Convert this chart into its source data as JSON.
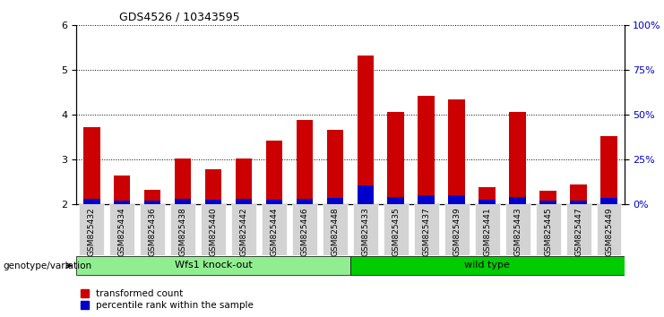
{
  "title": "GDS4526 / 10343595",
  "samples": [
    "GSM825432",
    "GSM825434",
    "GSM825436",
    "GSM825438",
    "GSM825440",
    "GSM825442",
    "GSM825444",
    "GSM825446",
    "GSM825448",
    "GSM825433",
    "GSM825435",
    "GSM825437",
    "GSM825439",
    "GSM825441",
    "GSM825443",
    "GSM825445",
    "GSM825447",
    "GSM825449"
  ],
  "red_values": [
    3.72,
    2.65,
    2.33,
    3.03,
    2.78,
    3.03,
    3.43,
    3.88,
    3.67,
    5.32,
    4.07,
    4.43,
    4.35,
    2.38,
    4.07,
    2.3,
    2.45,
    3.52
  ],
  "blue_values": [
    0.12,
    0.08,
    0.09,
    0.12,
    0.1,
    0.12,
    0.1,
    0.13,
    0.14,
    0.42,
    0.17,
    0.2,
    0.2,
    0.1,
    0.16,
    0.08,
    0.09,
    0.15
  ],
  "groups": [
    "Wfs1 knock-out",
    "Wfs1 knock-out",
    "Wfs1 knock-out",
    "Wfs1 knock-out",
    "Wfs1 knock-out",
    "Wfs1 knock-out",
    "Wfs1 knock-out",
    "Wfs1 knock-out",
    "Wfs1 knock-out",
    "wild type",
    "wild type",
    "wild type",
    "wild type",
    "wild type",
    "wild type",
    "wild type",
    "wild type",
    "wild type"
  ],
  "bar_color_red": "#cc0000",
  "bar_color_blue": "#0000cc",
  "ylim_left": [
    2,
    6
  ],
  "ylim_right": [
    0,
    100
  ],
  "yticks_left": [
    2,
    3,
    4,
    5,
    6
  ],
  "yticks_right": [
    0,
    25,
    50,
    75,
    100
  ],
  "ytick_labels_right": [
    "0%",
    "25%",
    "50%",
    "75%",
    "100%"
  ],
  "grid_color": "#000000",
  "bar_width": 0.55,
  "tick_label_color_right": "#0000cc",
  "ticklabel_bg": "#d3d3d3",
  "ko_color": "#90ee90",
  "wt_color": "#00cc00",
  "legend_red": "transformed count",
  "legend_blue": "percentile rank within the sample",
  "genotype_label": "genotype/variation"
}
